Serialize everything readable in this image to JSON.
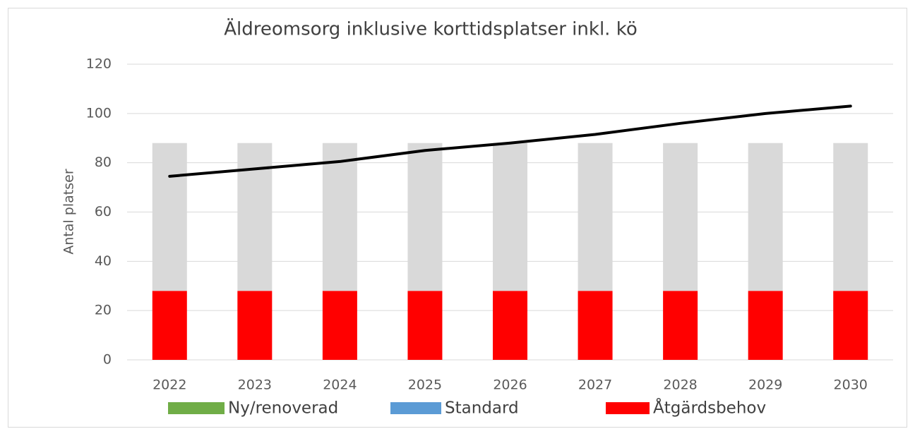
{
  "chart_data": {
    "type": "bar",
    "stacked": true,
    "title": "Äldreomsorg inklusive korttidsplatser inkl. kö",
    "y_label": "Antal platser",
    "categories": [
      "2022",
      "2023",
      "2024",
      "2025",
      "2026",
      "2027",
      "2028",
      "2029",
      "2030"
    ],
    "series": [
      {
        "name": "Ny/renoverad",
        "color": "#70ad47",
        "values": [
          0,
          0,
          0,
          0,
          0,
          0,
          0,
          0,
          0
        ]
      },
      {
        "name": "Standard",
        "color": "#5b9bd5",
        "values": [
          0,
          0,
          0,
          0,
          0,
          0,
          0,
          0,
          0
        ]
      },
      {
        "name": "Åtgärdsbehov",
        "color": "#ff0000",
        "values": [
          28,
          28,
          28,
          28,
          28,
          28,
          28,
          28,
          28
        ]
      },
      {
        "color": "#d9d9d9",
        "values": [
          60,
          60,
          60,
          60,
          60,
          60,
          60,
          60,
          60
        ]
      },
      {
        "type": "line",
        "color": "#000000",
        "values": [
          74.5,
          77.5,
          80.5,
          85,
          88,
          91.5,
          96,
          100,
          103
        ]
      }
    ],
    "ylim": [
      0,
      120
    ],
    "yticks": [
      0,
      20,
      40,
      60,
      80,
      100,
      120
    ],
    "grid": true,
    "legend": "bottom"
  }
}
